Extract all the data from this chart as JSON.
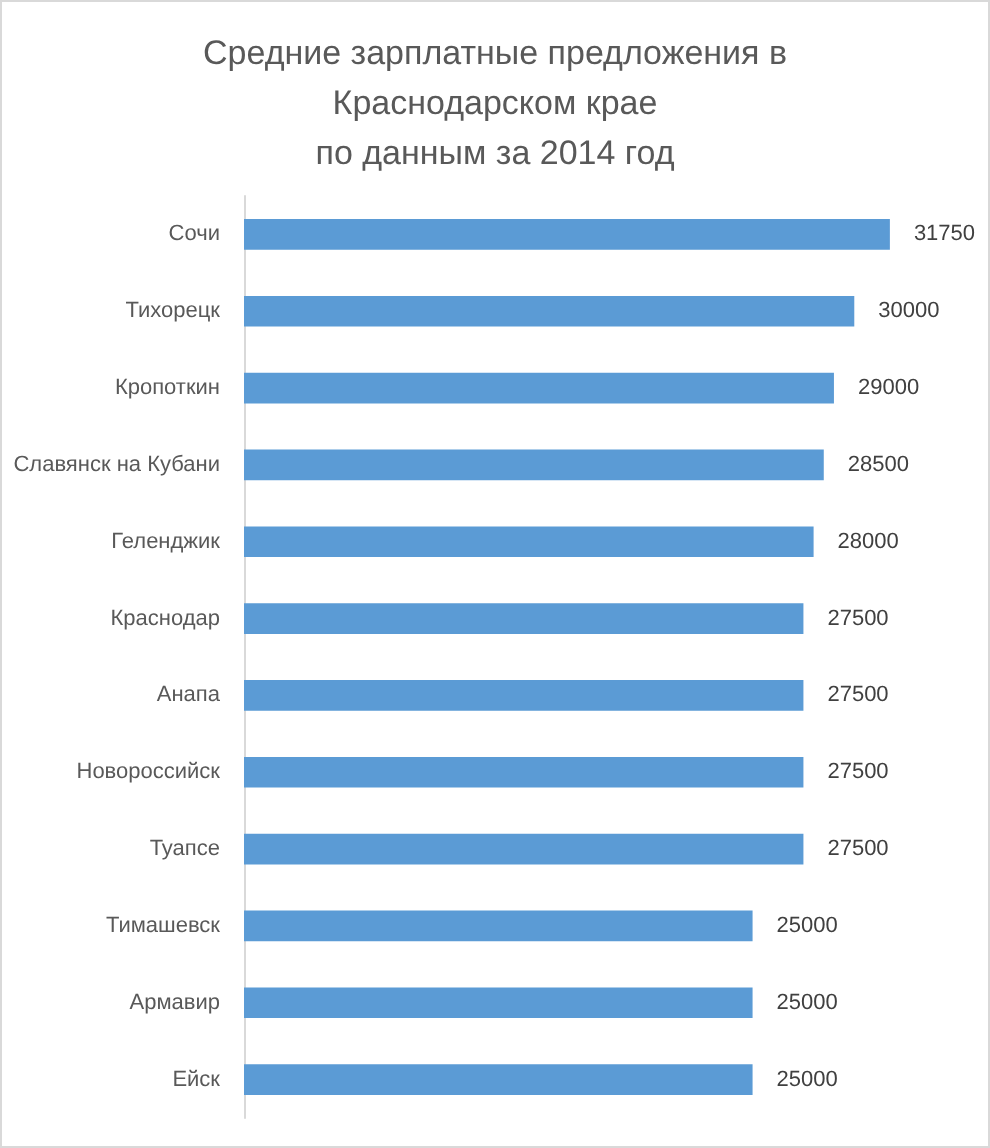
{
  "chart_data": {
    "type": "bar",
    "orientation": "horizontal",
    "title": "Средние зарплатные предложения в\nКраснодарском крае\nпо данным за 2014 год",
    "categories": [
      "Сочи",
      "Тихорецк",
      "Кропоткин",
      "Славянск на Кубани",
      "Геленджик",
      "Краснодар",
      "Анапа",
      "Новороссийск",
      "Туапсе",
      "Тимашевск",
      "Армавир",
      "Ейск"
    ],
    "values": [
      31750,
      30000,
      29000,
      28500,
      28000,
      27500,
      27500,
      27500,
      27500,
      25000,
      25000,
      25000
    ],
    "color": "#5b9bd5",
    "data_labels": true,
    "tick_labels": "y"
  }
}
